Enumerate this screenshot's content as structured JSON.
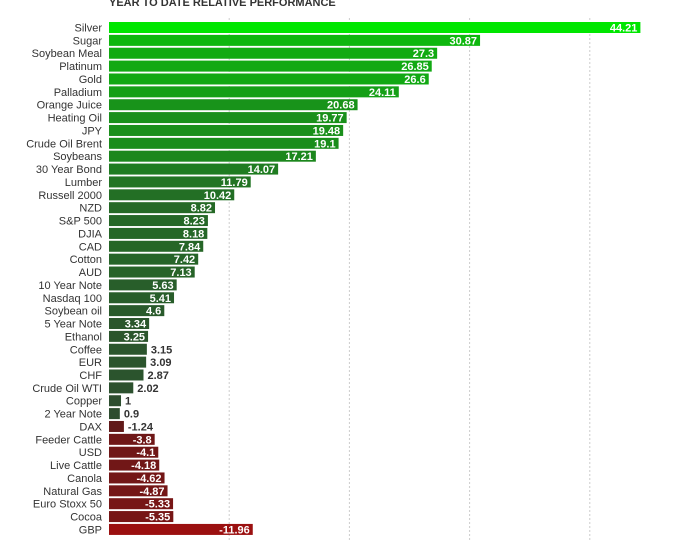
{
  "chart_data": {
    "type": "bar",
    "orientation": "horizontal",
    "title": "YEAR TO DATE RELATIVE PERFORMANCE",
    "xlabel": "",
    "ylabel": "",
    "xlim": [
      -15,
      50
    ],
    "grid": true,
    "legend": "none",
    "categories": [
      "Silver",
      "Sugar",
      "Soybean Meal",
      "Platinum",
      "Gold",
      "Palladium",
      "Orange Juice",
      "Heating Oil",
      "JPY",
      "Crude Oil Brent",
      "Soybeans",
      "30 Year Bond",
      "Lumber",
      "Russell 2000",
      "NZD",
      "S&P 500",
      "DJIA",
      "CAD",
      "Cotton",
      "AUD",
      "10 Year Note",
      "Nasdaq 100",
      "Soybean oil",
      "5 Year Note",
      "Ethanol",
      "Coffee",
      "EUR",
      "CHF",
      "Crude Oil WTI",
      "Copper",
      "2 Year Note",
      "DAX",
      "Feeder Cattle",
      "USD",
      "Live Cattle",
      "Canola",
      "Natural Gas",
      "Euro Stoxx 50",
      "Cocoa",
      "GBP"
    ],
    "values": [
      44.21,
      30.87,
      27.3,
      26.85,
      26.6,
      24.11,
      20.68,
      19.77,
      19.48,
      19.1,
      17.21,
      14.07,
      11.79,
      10.42,
      8.82,
      8.23,
      8.18,
      7.84,
      7.42,
      7.13,
      5.63,
      5.41,
      4.6,
      3.34,
      3.25,
      3.15,
      3.09,
      2.87,
      2.02,
      1,
      0.9,
      -1.24,
      -3.8,
      -4.1,
      -4.18,
      -4.62,
      -4.87,
      -5.33,
      -5.35,
      -11.96
    ],
    "value_labels": [
      "44.21",
      "30.87",
      "27.3",
      "26.85",
      "26.6",
      "24.11",
      "20.68",
      "19.77",
      "19.48",
      "19.1",
      "17.21",
      "14.07",
      "11.79",
      "10.42",
      "8.82",
      "8.23",
      "8.18",
      "7.84",
      "7.42",
      "7.13",
      "5.63",
      "5.41",
      "4.6",
      "3.34",
      "3.25",
      "3.15",
      "3.09",
      "2.87",
      "2.02",
      "1",
      "0.9",
      "-1.24",
      "-3.8",
      "-4.1",
      "-4.18",
      "-4.62",
      "-4.87",
      "-5.33",
      "-5.35",
      "-11.96"
    ],
    "colors": {
      "strong_positive": "#00e600",
      "positive_dark": "#2e4a30",
      "negative": "#5a1a1a",
      "strong_negative": "#9b1010",
      "grid": "#cccccc"
    }
  }
}
